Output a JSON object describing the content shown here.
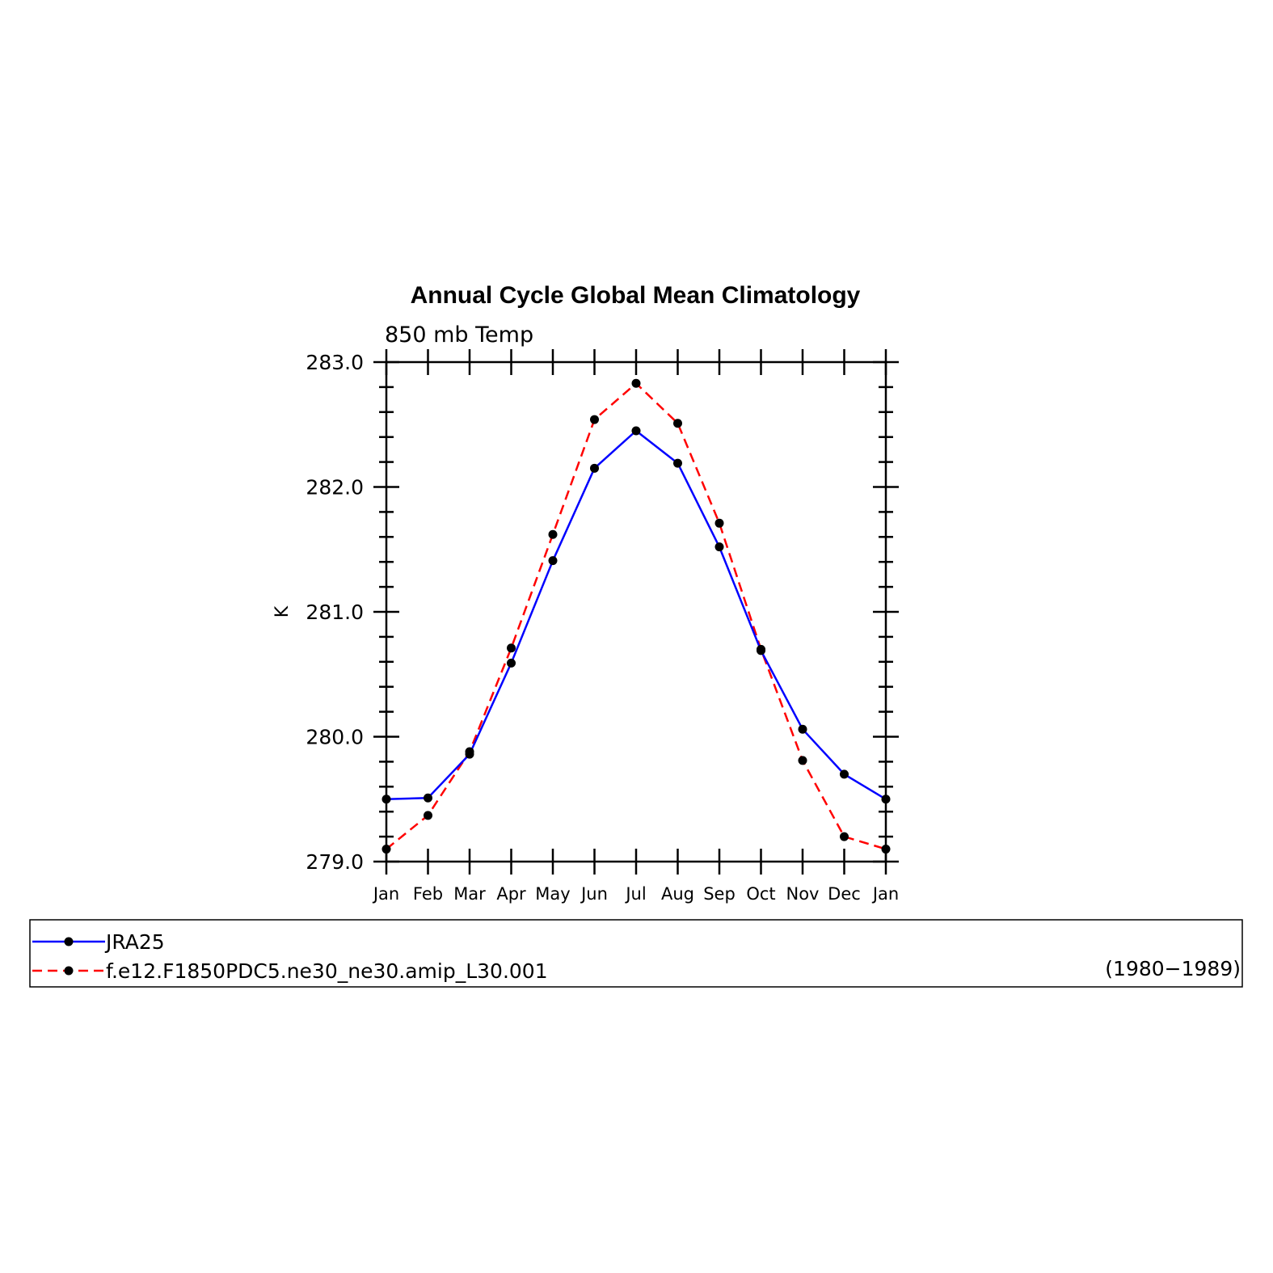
{
  "chart_data": {
    "type": "line",
    "title": "Annual Cycle Global Mean Climatology",
    "subtitle": "850 mb Temp",
    "ylabel": "K",
    "xlabel": "",
    "categories": [
      "Jan",
      "Feb",
      "Mar",
      "Apr",
      "May",
      "Jun",
      "Jul",
      "Aug",
      "Sep",
      "Oct",
      "Nov",
      "Dec",
      "Jan"
    ],
    "ylim": [
      279.0,
      283.0
    ],
    "yticks": [
      "279.0",
      "280.0",
      "281.0",
      "282.0",
      "283.0"
    ],
    "grid": false,
    "legend_position": "bottom",
    "legend_period": "(1980−1989)",
    "series": [
      {
        "name": "JRA25",
        "color": "#0000ff",
        "dash": "solid",
        "values": [
          279.5,
          279.51,
          279.86,
          280.59,
          281.41,
          282.15,
          282.45,
          282.19,
          281.52,
          280.69,
          280.06,
          279.7,
          279.5
        ]
      },
      {
        "name": "f.e12.F1850PDC5.ne30_ne30.amip_L30.001",
        "color": "#ff0000",
        "dash": "dashed",
        "values": [
          279.1,
          279.37,
          279.88,
          280.71,
          281.62,
          282.54,
          282.83,
          282.51,
          281.71,
          280.7,
          279.81,
          279.2,
          279.1
        ]
      }
    ]
  }
}
